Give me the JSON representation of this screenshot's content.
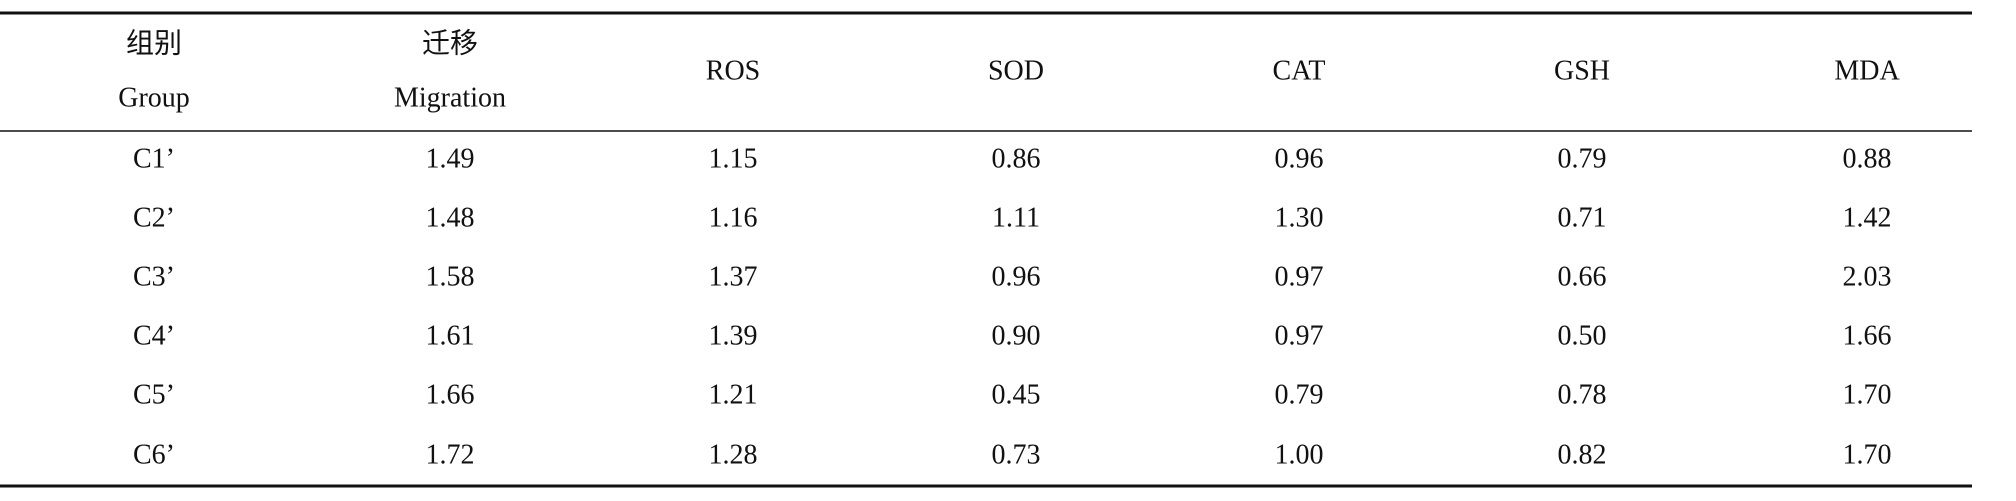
{
  "table": {
    "header": [
      {
        "zh": "组别",
        "en": "Group"
      },
      {
        "zh": "迁移",
        "en": "Migration"
      },
      {
        "en": "ROS"
      },
      {
        "en": "SOD"
      },
      {
        "en": "CAT"
      },
      {
        "en": "GSH"
      },
      {
        "en": "MDA"
      }
    ],
    "rows": [
      [
        "C1’",
        "1.49",
        "1.15",
        "0.86",
        "0.96",
        "0.79",
        "0.88"
      ],
      [
        "C2’",
        "1.48",
        "1.16",
        "1.11",
        "1.30",
        "0.71",
        "1.42"
      ],
      [
        "C3’",
        "1.58",
        "1.37",
        "0.96",
        "0.97",
        "0.66",
        "2.03"
      ],
      [
        "C4’",
        "1.61",
        "1.39",
        "0.90",
        "0.97",
        "0.50",
        "1.66"
      ],
      [
        "C5’",
        "1.66",
        "1.21",
        "0.45",
        "0.79",
        "0.78",
        "1.70"
      ],
      [
        "C6’",
        "1.72",
        "1.28",
        "0.73",
        "1.00",
        "0.82",
        "1.70"
      ]
    ]
  }
}
